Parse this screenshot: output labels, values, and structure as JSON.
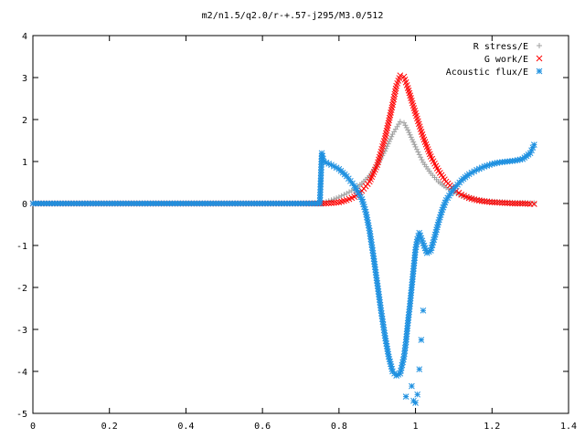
{
  "chart_data": {
    "type": "scatter",
    "title": "m2/n1.5/q2.0/r-+.57-j295/M3.0/512",
    "xlabel": "",
    "ylabel": "",
    "xlim": [
      0,
      1.4
    ],
    "ylim": [
      -5,
      4
    ],
    "x_ticks": [
      "0",
      "0.2",
      "0.4",
      "0.6",
      "0.8",
      "1",
      "1.2",
      "1.4"
    ],
    "y_ticks": [
      "4",
      "3",
      "2",
      "1",
      "0",
      "-1",
      "-2",
      "-3",
      "-4",
      "-5"
    ],
    "grid": false,
    "legend_position": "top-right",
    "series": [
      {
        "name": "R stress/E",
        "marker": "+",
        "color": "#a0a0a0",
        "points": [
          [
            0.0,
            0
          ],
          [
            0.1,
            0
          ],
          [
            0.2,
            0
          ],
          [
            0.3,
            0
          ],
          [
            0.4,
            0
          ],
          [
            0.5,
            0
          ],
          [
            0.6,
            0
          ],
          [
            0.7,
            0
          ],
          [
            0.76,
            0.02
          ],
          [
            0.78,
            0.08
          ],
          [
            0.8,
            0.15
          ],
          [
            0.82,
            0.24
          ],
          [
            0.84,
            0.34
          ],
          [
            0.86,
            0.48
          ],
          [
            0.88,
            0.66
          ],
          [
            0.9,
            0.92
          ],
          [
            0.92,
            1.25
          ],
          [
            0.94,
            1.65
          ],
          [
            0.96,
            1.95
          ],
          [
            0.97,
            1.92
          ],
          [
            0.98,
            1.75
          ],
          [
            1.0,
            1.35
          ],
          [
            1.02,
            0.98
          ],
          [
            1.04,
            0.72
          ],
          [
            1.06,
            0.52
          ],
          [
            1.08,
            0.38
          ],
          [
            1.1,
            0.27
          ],
          [
            1.12,
            0.19
          ],
          [
            1.14,
            0.14
          ],
          [
            1.16,
            0.1
          ],
          [
            1.18,
            0.07
          ],
          [
            1.2,
            0.05
          ],
          [
            1.22,
            0.04
          ],
          [
            1.24,
            0.03
          ],
          [
            1.26,
            0.02
          ],
          [
            1.28,
            0.02
          ],
          [
            1.3,
            0.01
          ],
          [
            1.31,
            0.01
          ]
        ]
      },
      {
        "name": "G work/E",
        "marker": "x",
        "color": "#ff0000",
        "points": [
          [
            0.0,
            0
          ],
          [
            0.1,
            0
          ],
          [
            0.2,
            0
          ],
          [
            0.3,
            0
          ],
          [
            0.4,
            0
          ],
          [
            0.5,
            0
          ],
          [
            0.6,
            0
          ],
          [
            0.7,
            0
          ],
          [
            0.76,
            0.0
          ],
          [
            0.78,
            0.01
          ],
          [
            0.8,
            0.03
          ],
          [
            0.82,
            0.08
          ],
          [
            0.84,
            0.16
          ],
          [
            0.86,
            0.3
          ],
          [
            0.88,
            0.52
          ],
          [
            0.9,
            0.92
          ],
          [
            0.92,
            1.55
          ],
          [
            0.94,
            2.35
          ],
          [
            0.95,
            2.8
          ],
          [
            0.96,
            3.05
          ],
          [
            0.97,
            3.02
          ],
          [
            0.98,
            2.75
          ],
          [
            1.0,
            2.15
          ],
          [
            1.02,
            1.58
          ],
          [
            1.04,
            1.12
          ],
          [
            1.06,
            0.78
          ],
          [
            1.08,
            0.52
          ],
          [
            1.1,
            0.34
          ],
          [
            1.12,
            0.21
          ],
          [
            1.14,
            0.13
          ],
          [
            1.16,
            0.08
          ],
          [
            1.18,
            0.05
          ],
          [
            1.2,
            0.03
          ],
          [
            1.22,
            0.02
          ],
          [
            1.24,
            0.01
          ],
          [
            1.26,
            0.0
          ],
          [
            1.28,
            0.0
          ],
          [
            1.3,
            -0.01
          ],
          [
            1.31,
            -0.01
          ]
        ]
      },
      {
        "name": "Acoustic flux/E",
        "marker": "*",
        "color": "#1e90e0",
        "points": [
          [
            0.0,
            0
          ],
          [
            0.1,
            0
          ],
          [
            0.2,
            0
          ],
          [
            0.3,
            0
          ],
          [
            0.4,
            0
          ],
          [
            0.5,
            0
          ],
          [
            0.6,
            0
          ],
          [
            0.7,
            0
          ],
          [
            0.75,
            0
          ],
          [
            0.755,
            1.2
          ],
          [
            0.76,
            1.0
          ],
          [
            0.78,
            0.92
          ],
          [
            0.8,
            0.82
          ],
          [
            0.82,
            0.65
          ],
          [
            0.84,
            0.42
          ],
          [
            0.86,
            0.1
          ],
          [
            0.87,
            -0.2
          ],
          [
            0.88,
            -0.65
          ],
          [
            0.89,
            -1.25
          ],
          [
            0.9,
            -1.9
          ],
          [
            0.91,
            -2.55
          ],
          [
            0.92,
            -3.15
          ],
          [
            0.93,
            -3.65
          ],
          [
            0.94,
            -4.0
          ],
          [
            0.95,
            -4.1
          ],
          [
            0.96,
            -4.05
          ],
          [
            0.97,
            -3.65
          ],
          [
            0.975,
            -3.3
          ],
          [
            0.98,
            -2.85
          ],
          [
            0.985,
            -2.45
          ],
          [
            0.99,
            -2.0
          ],
          [
            0.995,
            -1.55
          ],
          [
            1.0,
            -1.1
          ],
          [
            1.005,
            -0.85
          ],
          [
            1.01,
            -0.7
          ],
          [
            1.02,
            -0.95
          ],
          [
            1.03,
            -1.18
          ],
          [
            1.04,
            -1.12
          ],
          [
            1.05,
            -0.8
          ],
          [
            1.06,
            -0.45
          ],
          [
            1.07,
            -0.15
          ],
          [
            1.08,
            0.08
          ],
          [
            1.1,
            0.35
          ],
          [
            1.12,
            0.55
          ],
          [
            1.14,
            0.7
          ],
          [
            1.16,
            0.8
          ],
          [
            1.18,
            0.88
          ],
          [
            1.2,
            0.94
          ],
          [
            1.22,
            0.98
          ],
          [
            1.24,
            1.0
          ],
          [
            1.26,
            1.02
          ],
          [
            1.28,
            1.06
          ],
          [
            1.3,
            1.2
          ],
          [
            1.31,
            1.4
          ]
        ]
      },
      {
        "name": "",
        "marker": "*",
        "color": "#1e90e0",
        "points": [
          [
            0.975,
            -4.6
          ],
          [
            0.99,
            -4.35
          ],
          [
            0.995,
            -4.7
          ],
          [
            1.0,
            -4.75
          ],
          [
            1.005,
            -4.55
          ],
          [
            1.01,
            -3.95
          ],
          [
            1.015,
            -3.25
          ],
          [
            1.02,
            -2.55
          ]
        ]
      }
    ]
  }
}
